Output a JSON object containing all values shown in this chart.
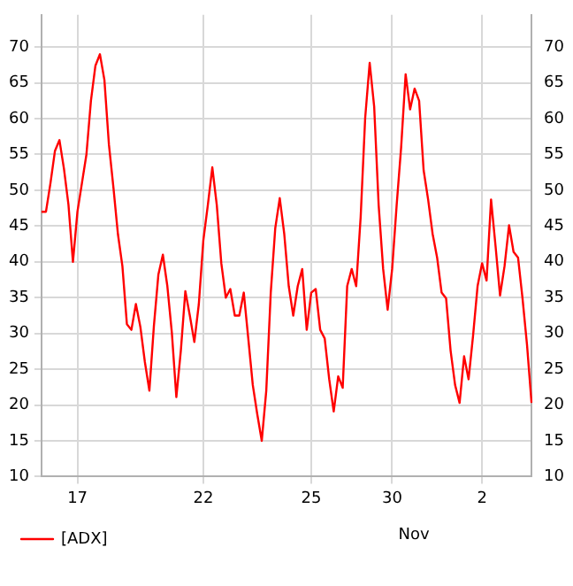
{
  "chart_data": {
    "type": "line",
    "categories": [
      null,
      null,
      null,
      null,
      null,
      null,
      null,
      null,
      "17",
      null,
      null,
      null,
      null,
      null,
      null,
      null,
      null,
      null,
      null,
      null,
      null,
      null,
      null,
      null,
      null,
      null,
      null,
      null,
      null,
      null,
      null,
      null,
      null,
      null,
      null,
      null,
      "22",
      null,
      null,
      null,
      null,
      null,
      null,
      null,
      null,
      null,
      null,
      null,
      null,
      null,
      null,
      null,
      null,
      null,
      null,
      null,
      null,
      null,
      null,
      null,
      "25",
      null,
      null,
      null,
      null,
      null,
      null,
      null,
      null,
      null,
      null,
      null,
      null,
      null,
      null,
      null,
      null,
      null,
      "30",
      null,
      null,
      null,
      null,
      null,
      null,
      null,
      null,
      null,
      null,
      null,
      null,
      null,
      null,
      null,
      null,
      null,
      null,
      null,
      "2",
      null,
      null,
      null,
      null,
      null,
      null,
      null,
      null,
      null,
      null,
      null
    ],
    "series": [
      {
        "name": "[ADX]",
        "color": "#ff0000",
        "values": [
          47,
          47,
          51,
          55.5,
          57,
          53,
          48,
          40,
          47,
          51,
          55,
          62.5,
          67.4,
          69,
          65.4,
          56.4,
          50.4,
          43.9,
          39.4,
          31.3,
          30.5,
          34.1,
          30.9,
          26,
          22,
          31,
          38.2,
          41,
          36.6,
          30.1,
          21.1,
          27.6,
          35.9,
          32.5,
          28.8,
          34.1,
          43,
          47.9,
          53.2,
          47.9,
          39.8,
          35,
          36.2,
          32.5,
          32.5,
          35.7,
          29.3,
          22.8,
          18.7,
          15,
          22,
          35.7,
          44.7,
          48.9,
          43.9,
          36.6,
          32.5,
          36.6,
          39,
          30.5,
          35.7,
          36.2,
          30.5,
          29.3,
          23.6,
          19.1,
          24,
          22.4,
          36.6,
          39,
          36.6,
          46.3,
          60.1,
          67.8,
          61.7,
          47.9,
          39,
          33.3,
          39,
          47.9,
          56,
          66.2,
          61.3,
          64.2,
          62.5,
          52.8,
          48.7,
          43.9,
          40.6,
          35.7,
          34.9,
          27.6,
          22.8,
          20.3,
          26.8,
          23.6,
          29.7,
          36.6,
          39.8,
          37.4,
          48.7,
          42.2,
          35.3,
          39.4,
          45.1,
          41.4,
          40.6,
          34.9,
          28.4,
          20.3
        ]
      }
    ],
    "ylim": [
      10,
      74.5
    ],
    "yticks": [
      10,
      15,
      20,
      25,
      30,
      35,
      40,
      45,
      50,
      55,
      60,
      65,
      70
    ],
    "y2lim": [
      10,
      74.5
    ],
    "y2ticks": [
      10,
      15,
      20,
      25,
      30,
      35,
      40,
      45,
      50,
      55,
      60,
      65,
      70
    ],
    "annotations": [
      "Nov"
    ],
    "grid": true,
    "legend": "bottom left",
    "marker": "none",
    "line_style": "solid"
  }
}
